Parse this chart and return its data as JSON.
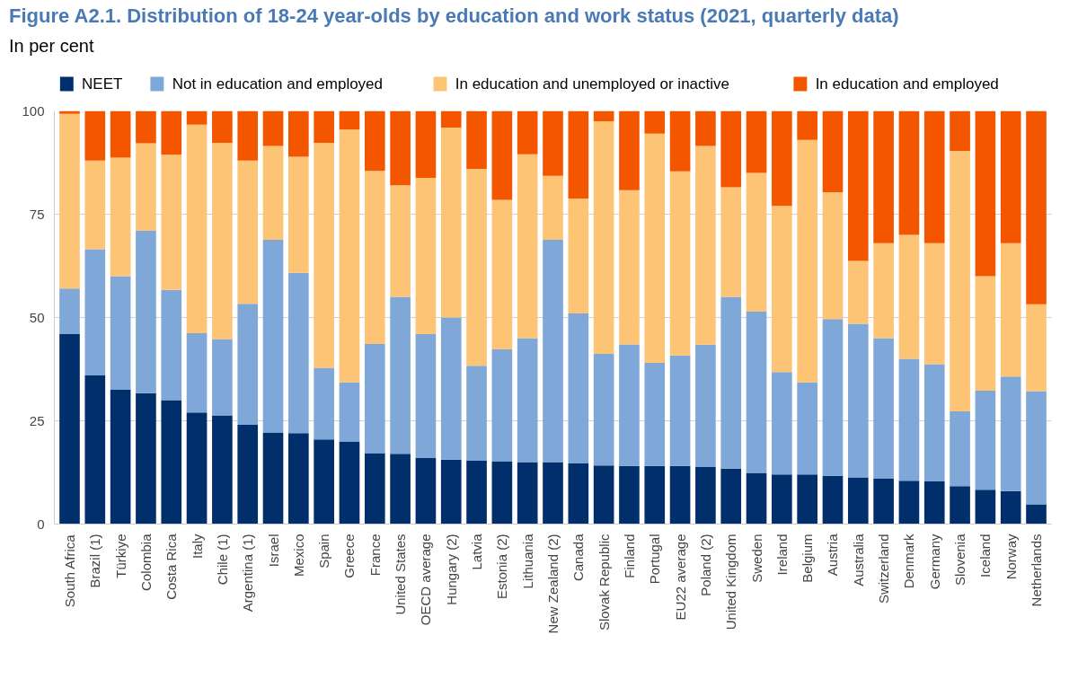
{
  "chart_data": {
    "type": "bar",
    "stacked": true,
    "title": "Figure A2.1. Distribution of 18-24 year-olds by education and work status (2021, quarterly data)",
    "subtitle": "In per cent",
    "categories": [
      "South Africa",
      "Brazil (1)",
      "Türkiye",
      "Colombia",
      "Costa Rica",
      "Italy",
      "Chile (1)",
      "Argentina (1)",
      "Israel",
      "Mexico",
      "Spain",
      "Greece",
      "France",
      "United States",
      "OECD average",
      "Hungary (2)",
      "Latvia",
      "Estonia (2)",
      "Lithuania",
      "New Zealand (2)",
      "Canada",
      "Slovak Republic",
      "Finland",
      "Portugal",
      "EU22 average",
      "Poland (2)",
      "United Kingdom",
      "Sweden",
      "Ireland",
      "Belgium",
      "Austria",
      "Australia",
      "Switzerland",
      "Denmark",
      "Germany",
      "Slovenia",
      "Iceland",
      "Norway",
      "Netherlands"
    ],
    "series": [
      {
        "name": "NEET",
        "color": "#002f6c",
        "values": [
          46,
          36,
          32.5,
          31.7,
          30,
          27,
          26.3,
          24,
          22.2,
          22,
          20.5,
          20,
          17.2,
          17,
          16,
          15.6,
          15.3,
          15.2,
          15,
          15,
          14.7,
          14.2,
          14.1,
          14.1,
          14.1,
          13.8,
          13.4,
          12.4,
          12,
          12,
          11.7,
          11.3,
          11,
          10.5,
          10.3,
          9.2,
          8.3,
          8,
          4.8
        ]
      },
      {
        "name": "Not in education and employed",
        "color": "#7fa8d9",
        "values": [
          11,
          30.5,
          27.5,
          39.3,
          26.7,
          19.2,
          18.5,
          29.3,
          46.6,
          38.8,
          17.3,
          14.3,
          26.4,
          38,
          30,
          34.4,
          23,
          27.1,
          30,
          53.8,
          36.3,
          27,
          29.4,
          24.9,
          26.7,
          29.6,
          41.6,
          39,
          24.8,
          22.3,
          37.9,
          37.2,
          34,
          29.5,
          28.4,
          18.1,
          24,
          27.7,
          27.4
        ]
      },
      {
        "name": "In education and unemployed or inactive",
        "color": "#fdc475",
        "values": [
          42.3,
          21.5,
          28.7,
          21.2,
          32.7,
          50.5,
          47.5,
          34.7,
          22.7,
          28.1,
          54.5,
          61.2,
          41.9,
          27,
          37.8,
          46,
          47.7,
          36.2,
          44.5,
          15.5,
          27.8,
          56.3,
          37.3,
          55.5,
          44.6,
          48.1,
          26.5,
          33.6,
          40.2,
          58.7,
          30.7,
          15.2,
          23,
          30,
          29.3,
          63,
          27.7,
          32.3,
          21
        ]
      },
      {
        "name": "In education and employed",
        "color": "#f45600",
        "values": [
          0.7,
          12,
          11.3,
          7.8,
          10.6,
          3.3,
          7.7,
          12,
          8.5,
          11.1,
          7.7,
          4.5,
          14.5,
          18,
          16.2,
          4,
          14,
          21.5,
          10.5,
          15.7,
          21.2,
          2.5,
          19.2,
          5.5,
          14.6,
          8.5,
          18.5,
          15,
          23,
          7,
          19.7,
          36.3,
          32,
          30,
          32,
          9.7,
          40,
          32,
          46.8
        ]
      }
    ],
    "ylim": [
      0,
      100
    ],
    "yticks": [
      0,
      25,
      50,
      75,
      100
    ],
    "grid": "y",
    "legend": "top"
  }
}
